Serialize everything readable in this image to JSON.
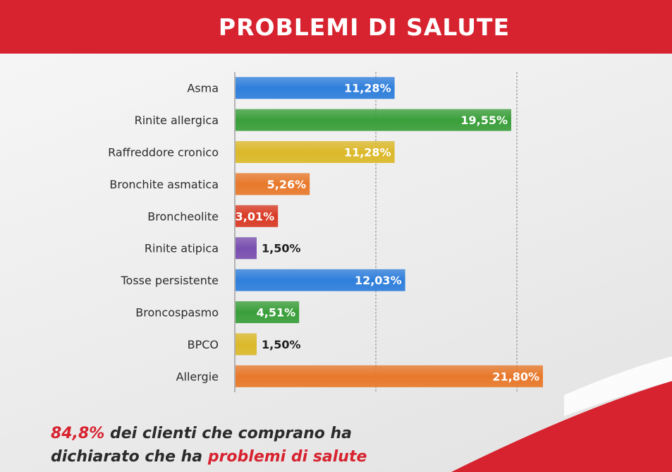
{
  "header": {
    "title": "PROBLEMI DI SALUTE"
  },
  "chart_data": {
    "type": "bar",
    "orientation": "horizontal",
    "title": "PROBLEMI DI SALUTE",
    "xlabel": "",
    "ylabel": "",
    "xlim": [
      0,
      25
    ],
    "grid": true,
    "categories": [
      "Asma",
      "Rinite allergica",
      "Raffreddore cronico",
      "Bronchite asmatica",
      "Broncheolite",
      "Rinite atipica",
      "Tosse persistente",
      "Broncospasmo",
      "BPCO",
      "Allergie"
    ],
    "values": [
      11.28,
      19.55,
      11.28,
      5.26,
      3.01,
      1.5,
      12.03,
      4.51,
      1.5,
      21.8
    ],
    "value_labels": [
      "11,28%",
      "19,55%",
      "11,28%",
      "5,26%",
      "3,01%",
      "1,50%",
      "12,03%",
      "4,51%",
      "1,50%",
      "21,80%"
    ],
    "colors": [
      "#2f7fdc",
      "#3a9f3a",
      "#dcb92a",
      "#e8792b",
      "#d93a24",
      "#7a4fb0",
      "#2f7fdc",
      "#3a9f3a",
      "#dcb92a",
      "#e8792b"
    ]
  },
  "footer": {
    "highlight_value": "84,8%",
    "text_1": " dei clienti che comprano ha",
    "text_2": "dichiarato che ha ",
    "highlight_text": "problemi di salute"
  },
  "colors": {
    "accent": "#d7232f"
  }
}
